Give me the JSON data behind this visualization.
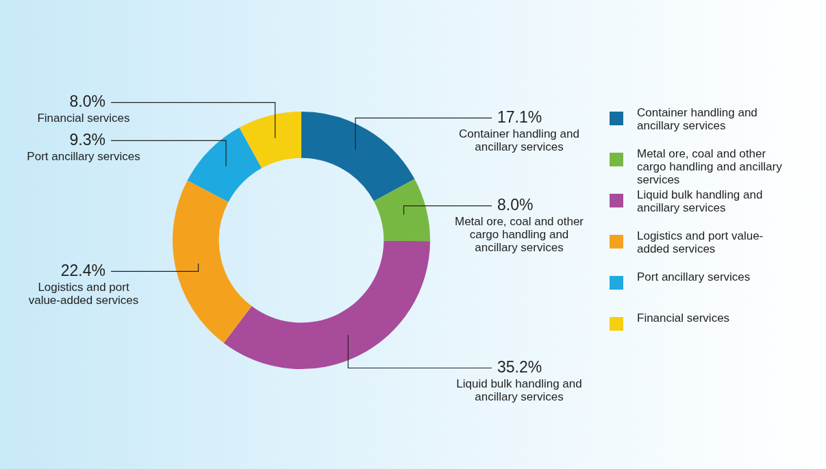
{
  "chart_data": {
    "type": "donut",
    "categories": [
      "Container handling and ancillary services",
      "Metal ore, coal and other cargo handling and ancillary services",
      "Liquid bulk handling and ancillary services",
      "Logistics and port value-added services",
      "Port ancillary services",
      "Financial services"
    ],
    "values": [
      17.1,
      8.0,
      35.2,
      22.4,
      9.3,
      8.0
    ],
    "colors": [
      "#156ea0",
      "#77b843",
      "#a84b9b",
      "#f4a21e",
      "#1ea9e0",
      "#f5cf10"
    ],
    "value_labels": [
      "17.1%",
      "8.0%",
      "35.2%",
      "22.4%",
      "9.3%",
      "8.0%"
    ],
    "legend": "right"
  }
}
